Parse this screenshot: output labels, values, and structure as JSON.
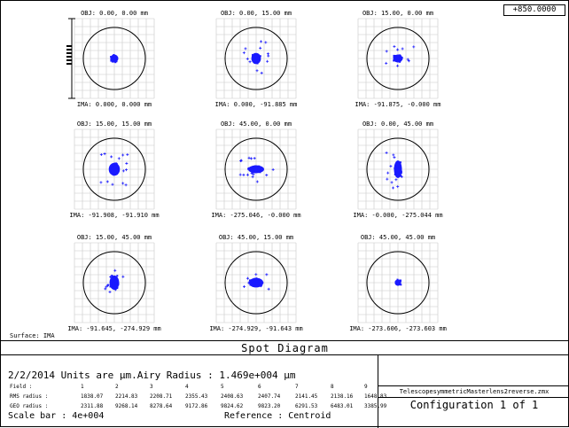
{
  "scale_value": "+850.0000",
  "surface_label": "Surface: IMA",
  "spots": [
    {
      "obj": "OBJ: 0.00, 0.00 mm",
      "ima": "IMA: 0.000, 0.000 mm",
      "pattern": "round"
    },
    {
      "obj": "OBJ: 0.00, 15.00 mm",
      "ima": "IMA: 0.000, -91.885 mm",
      "pattern": "vertical"
    },
    {
      "obj": "OBJ: 15.00, 0.00 mm",
      "ima": "IMA: -91.875, -0.000 mm",
      "pattern": "horizontal"
    },
    {
      "obj": "OBJ: 15.00, 15.00 mm",
      "ima": "IMA: -91.908, -91.910 mm",
      "pattern": "diagonal"
    },
    {
      "obj": "OBJ: 45.00, 0.00 mm",
      "ima": "IMA: -275.046, -0.000 mm",
      "pattern": "wide-horizontal"
    },
    {
      "obj": "OBJ: 0.00, 45.00 mm",
      "ima": "IMA: -0.000, -275.044 mm",
      "pattern": "wide-vertical"
    },
    {
      "obj": "OBJ: 15.00, 45.00 mm",
      "ima": "IMA: -91.645, -274.929 mm",
      "pattern": "blob-tall"
    },
    {
      "obj": "OBJ: 45.00, 15.00 mm",
      "ima": "IMA: -274.929, -91.643 mm",
      "pattern": "blob-wide"
    },
    {
      "obj": "OBJ: 45.00, 45.00 mm",
      "ima": "IMA: -273.606, -273.603 mm",
      "pattern": "small"
    }
  ],
  "footer": {
    "title": "Spot Diagram",
    "info": "2/2/2014  Units are µm.Airy Radius : 1.469e+004 µm",
    "field_label": "Field   :",
    "rms_label": "RMS radius :",
    "geo_label": "GEO radius :",
    "fields": [
      "1",
      "2",
      "3",
      "4",
      "5",
      "6",
      "7",
      "8",
      "9"
    ],
    "rms": [
      "1838.07",
      "2214.83",
      "2208.71",
      "2355.43",
      "2408.63",
      "2407.74",
      "2141.45",
      "2138.16",
      "1648.83"
    ],
    "geo": [
      "2311.88",
      "9268.14",
      "8278.64",
      "9172.86",
      "9824.62",
      "9823.20",
      "6291.53",
      "6483.01",
      "3385.99"
    ],
    "scale_bar": "Scale bar  :    4e+004",
    "reference": "Reference  : Centroid",
    "file_name": "TelescopesymmetricMasterlens2reverse.zmx",
    "configuration": "Configuration 1 of 1"
  }
}
